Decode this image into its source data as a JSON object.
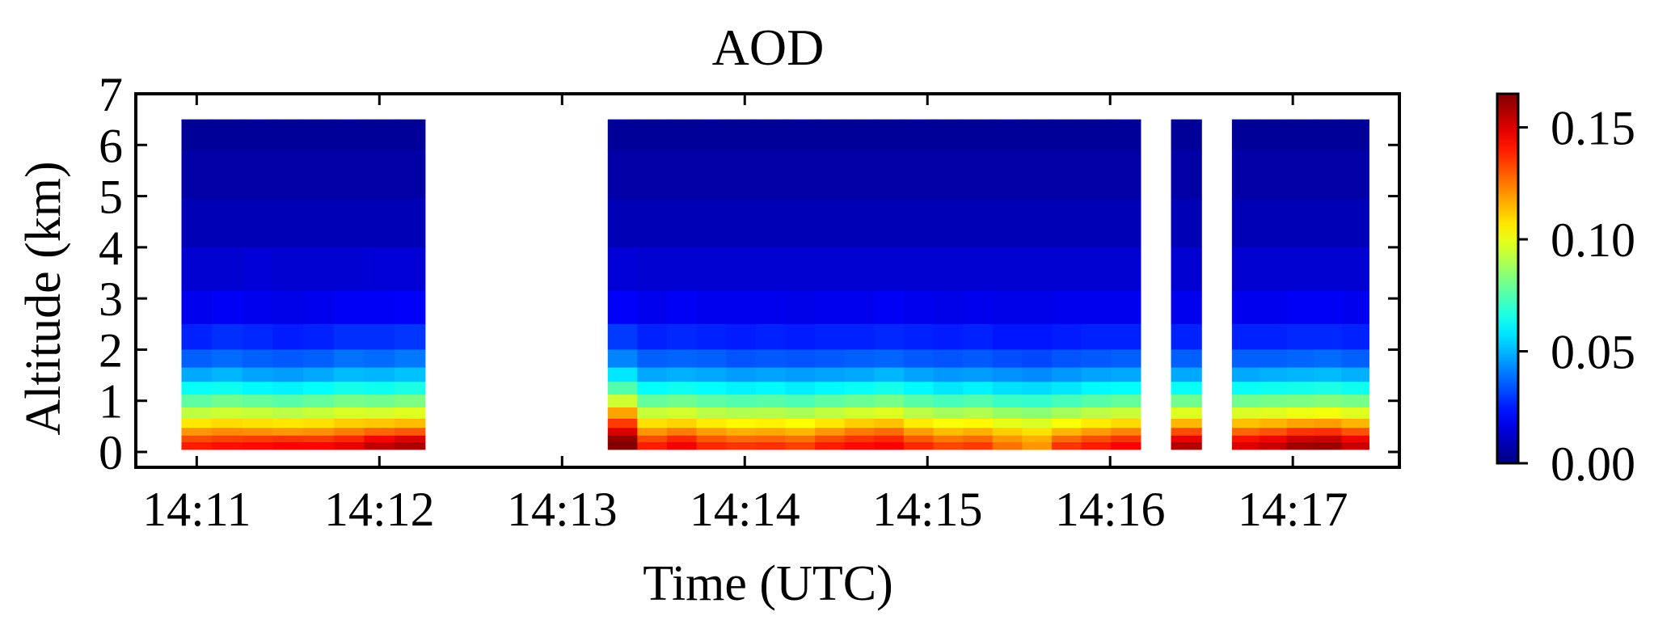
{
  "chart_data": {
    "type": "heatmap",
    "title": "AOD",
    "xlabel": "Time (UTC)",
    "ylabel": "Altitude (km)",
    "xlim": [
      "14:10:40",
      "14:17:35"
    ],
    "ylim": [
      -0.3,
      7
    ],
    "x_ticks": [
      "14:11",
      "14:12",
      "14:13",
      "14:14",
      "14:15",
      "14:16",
      "14:17"
    ],
    "y_ticks": [
      0,
      1,
      2,
      3,
      4,
      5,
      6,
      7
    ],
    "y_tick_labels": [
      "0",
      "1",
      "2",
      "3",
      "4",
      "5",
      "6",
      "7"
    ],
    "colorbar": {
      "colormap": "jet",
      "range": [
        0,
        0.165
      ],
      "ticks": [
        0.0,
        0.05,
        0.1,
        0.15
      ],
      "tick_labels": [
        "0.00",
        "0.05",
        "0.10",
        "0.15"
      ]
    },
    "altitude_km": [
      6.4,
      5.4,
      4.5,
      3.5,
      2.8,
      2.2,
      1.8,
      1.5,
      1.25,
      1.0,
      0.75,
      0.55,
      0.4,
      0.25,
      0.12
    ],
    "altitude_edges_km": [
      6.5,
      5.9,
      4.95,
      4.0,
      3.15,
      2.5,
      2.0,
      1.65,
      1.37,
      1.12,
      0.87,
      0.65,
      0.47,
      0.32,
      0.19,
      0.05
    ],
    "segments": [
      {
        "start": "14:10:55",
        "end": "14:12:15",
        "columns": [
          [
            0.004,
            0.006,
            0.009,
            0.013,
            0.018,
            0.026,
            0.036,
            0.048,
            0.063,
            0.077,
            0.093,
            0.107,
            0.12,
            0.132,
            0.14
          ],
          [
            0.004,
            0.006,
            0.009,
            0.013,
            0.019,
            0.028,
            0.038,
            0.05,
            0.064,
            0.08,
            0.095,
            0.109,
            0.122,
            0.134,
            0.142
          ],
          [
            0.004,
            0.006,
            0.009,
            0.014,
            0.018,
            0.027,
            0.036,
            0.047,
            0.061,
            0.078,
            0.094,
            0.108,
            0.121,
            0.135,
            0.143
          ],
          [
            0.004,
            0.006,
            0.009,
            0.013,
            0.017,
            0.025,
            0.035,
            0.046,
            0.06,
            0.076,
            0.092,
            0.107,
            0.12,
            0.136,
            0.145
          ],
          [
            0.004,
            0.006,
            0.009,
            0.013,
            0.018,
            0.026,
            0.036,
            0.048,
            0.062,
            0.078,
            0.094,
            0.108,
            0.121,
            0.135,
            0.144
          ],
          [
            0.004,
            0.006,
            0.009,
            0.013,
            0.019,
            0.028,
            0.039,
            0.051,
            0.065,
            0.081,
            0.097,
            0.111,
            0.124,
            0.138,
            0.148
          ],
          [
            0.004,
            0.006,
            0.009,
            0.014,
            0.019,
            0.028,
            0.038,
            0.05,
            0.064,
            0.08,
            0.096,
            0.112,
            0.128,
            0.145,
            0.155
          ],
          [
            0.004,
            0.006,
            0.009,
            0.014,
            0.02,
            0.029,
            0.04,
            0.052,
            0.066,
            0.082,
            0.098,
            0.114,
            0.13,
            0.15,
            0.158
          ]
        ]
      },
      {
        "start": "14:13:15",
        "end": "14:16:10",
        "columns": [
          [
            0.004,
            0.006,
            0.009,
            0.014,
            0.02,
            0.03,
            0.042,
            0.058,
            0.075,
            0.095,
            0.118,
            0.135,
            0.15,
            0.162,
            0.168
          ],
          [
            0.004,
            0.006,
            0.009,
            0.013,
            0.018,
            0.026,
            0.036,
            0.048,
            0.062,
            0.078,
            0.094,
            0.108,
            0.12,
            0.132,
            0.14
          ],
          [
            0.004,
            0.006,
            0.009,
            0.013,
            0.019,
            0.027,
            0.037,
            0.049,
            0.064,
            0.08,
            0.096,
            0.11,
            0.124,
            0.138,
            0.146
          ],
          [
            0.004,
            0.006,
            0.009,
            0.013,
            0.018,
            0.026,
            0.036,
            0.048,
            0.062,
            0.077,
            0.092,
            0.106,
            0.119,
            0.13,
            0.138
          ],
          [
            0.004,
            0.006,
            0.009,
            0.013,
            0.018,
            0.025,
            0.034,
            0.046,
            0.06,
            0.075,
            0.09,
            0.104,
            0.116,
            0.127,
            0.136
          ],
          [
            0.004,
            0.006,
            0.009,
            0.013,
            0.018,
            0.026,
            0.035,
            0.047,
            0.061,
            0.076,
            0.091,
            0.105,
            0.117,
            0.128,
            0.137
          ],
          [
            0.004,
            0.006,
            0.009,
            0.013,
            0.017,
            0.025,
            0.034,
            0.046,
            0.059,
            0.074,
            0.089,
            0.103,
            0.115,
            0.126,
            0.134
          ],
          [
            0.004,
            0.006,
            0.009,
            0.013,
            0.018,
            0.026,
            0.035,
            0.047,
            0.061,
            0.077,
            0.093,
            0.107,
            0.12,
            0.132,
            0.14
          ],
          [
            0.004,
            0.006,
            0.009,
            0.013,
            0.018,
            0.026,
            0.036,
            0.048,
            0.063,
            0.079,
            0.096,
            0.111,
            0.125,
            0.136,
            0.143
          ],
          [
            0.004,
            0.006,
            0.009,
            0.013,
            0.019,
            0.027,
            0.037,
            0.05,
            0.065,
            0.081,
            0.098,
            0.113,
            0.127,
            0.138,
            0.145
          ],
          [
            0.004,
            0.006,
            0.009,
            0.013,
            0.018,
            0.026,
            0.035,
            0.047,
            0.061,
            0.076,
            0.092,
            0.106,
            0.119,
            0.13,
            0.138
          ],
          [
            0.004,
            0.006,
            0.009,
            0.013,
            0.017,
            0.025,
            0.034,
            0.045,
            0.058,
            0.073,
            0.088,
            0.102,
            0.114,
            0.125,
            0.133
          ],
          [
            0.004,
            0.006,
            0.009,
            0.013,
            0.018,
            0.026,
            0.035,
            0.046,
            0.06,
            0.075,
            0.09,
            0.104,
            0.116,
            0.127,
            0.135
          ],
          [
            0.004,
            0.006,
            0.009,
            0.013,
            0.017,
            0.024,
            0.033,
            0.044,
            0.057,
            0.071,
            0.086,
            0.099,
            0.111,
            0.12,
            0.126
          ],
          [
            0.004,
            0.006,
            0.009,
            0.013,
            0.017,
            0.024,
            0.032,
            0.043,
            0.056,
            0.07,
            0.084,
            0.097,
            0.108,
            0.116,
            0.12
          ],
          [
            0.004,
            0.006,
            0.009,
            0.013,
            0.018,
            0.025,
            0.034,
            0.045,
            0.058,
            0.073,
            0.088,
            0.102,
            0.115,
            0.127,
            0.136
          ],
          [
            0.004,
            0.006,
            0.009,
            0.013,
            0.018,
            0.026,
            0.035,
            0.047,
            0.061,
            0.076,
            0.092,
            0.106,
            0.119,
            0.132,
            0.14
          ],
          [
            0.004,
            0.006,
            0.009,
            0.013,
            0.018,
            0.026,
            0.036,
            0.048,
            0.062,
            0.078,
            0.094,
            0.109,
            0.123,
            0.136,
            0.145
          ]
        ]
      },
      {
        "start": "14:16:20",
        "end": "14:16:30",
        "columns": [
          [
            0.004,
            0.006,
            0.009,
            0.013,
            0.018,
            0.026,
            0.036,
            0.048,
            0.063,
            0.08,
            0.098,
            0.115,
            0.132,
            0.148,
            0.157
          ]
        ]
      },
      {
        "start": "14:16:40",
        "end": "14:17:25",
        "columns": [
          [
            0.004,
            0.006,
            0.009,
            0.013,
            0.018,
            0.026,
            0.036,
            0.048,
            0.063,
            0.08,
            0.097,
            0.113,
            0.128,
            0.142,
            0.15
          ],
          [
            0.004,
            0.006,
            0.009,
            0.013,
            0.018,
            0.026,
            0.036,
            0.049,
            0.064,
            0.081,
            0.098,
            0.115,
            0.131,
            0.146,
            0.154
          ],
          [
            0.004,
            0.006,
            0.009,
            0.013,
            0.019,
            0.027,
            0.037,
            0.05,
            0.065,
            0.082,
            0.1,
            0.118,
            0.136,
            0.152,
            0.16
          ],
          [
            0.004,
            0.006,
            0.009,
            0.013,
            0.019,
            0.027,
            0.038,
            0.051,
            0.066,
            0.083,
            0.101,
            0.119,
            0.137,
            0.153,
            0.161
          ],
          [
            0.004,
            0.006,
            0.009,
            0.013,
            0.018,
            0.026,
            0.036,
            0.049,
            0.064,
            0.081,
            0.098,
            0.115,
            0.131,
            0.146,
            0.154
          ]
        ]
      }
    ]
  }
}
